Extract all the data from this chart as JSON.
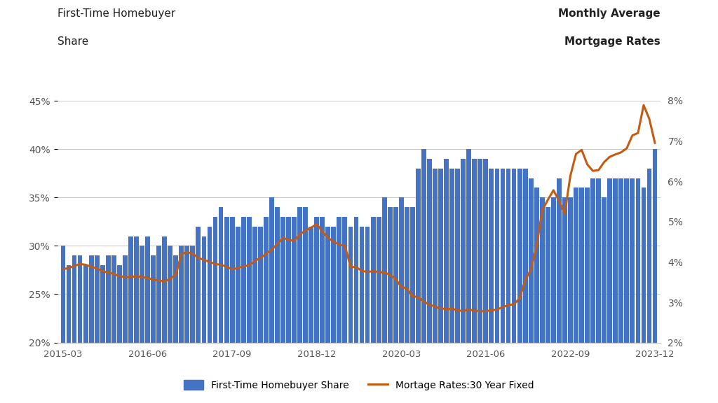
{
  "title_left_line1": "First-Time Homebuyer",
  "title_left_line2": "Share",
  "title_right_line1": "Monthly Average",
  "title_right_line2": "Mortgage Rates",
  "legend_bar": "First-Time Homebuyer Share",
  "legend_line": "Mortage Rates:30 Year Fixed",
  "bar_color": "#4472C4",
  "line_color": "#C55A11",
  "bg_color": "#FFFFFF",
  "ylim_left": [
    0.2,
    0.45
  ],
  "ylim_right": [
    0.02,
    0.08
  ],
  "yticks_left": [
    0.2,
    0.25,
    0.3,
    0.35,
    0.4,
    0.45
  ],
  "yticks_right": [
    0.02,
    0.03,
    0.04,
    0.05,
    0.06,
    0.07,
    0.08
  ],
  "fthb_share": [
    0.3,
    0.28,
    0.29,
    0.29,
    0.28,
    0.29,
    0.29,
    0.28,
    0.29,
    0.29,
    0.28,
    0.29,
    0.31,
    0.31,
    0.3,
    0.31,
    0.29,
    0.3,
    0.31,
    0.3,
    0.29,
    0.3,
    0.3,
    0.3,
    0.32,
    0.31,
    0.32,
    0.33,
    0.34,
    0.33,
    0.33,
    0.32,
    0.33,
    0.33,
    0.32,
    0.32,
    0.33,
    0.35,
    0.34,
    0.33,
    0.33,
    0.33,
    0.34,
    0.34,
    0.32,
    0.33,
    0.33,
    0.32,
    0.32,
    0.33,
    0.33,
    0.32,
    0.33,
    0.32,
    0.32,
    0.33,
    0.33,
    0.35,
    0.34,
    0.34,
    0.35,
    0.34,
    0.34,
    0.38,
    0.4,
    0.39,
    0.38,
    0.38,
    0.39,
    0.38,
    0.38,
    0.39,
    0.4,
    0.39,
    0.39,
    0.39,
    0.38,
    0.38,
    0.38,
    0.38,
    0.38,
    0.38,
    0.38,
    0.37,
    0.36,
    0.35,
    0.34,
    0.35,
    0.37,
    0.35,
    0.35,
    0.36,
    0.36,
    0.36,
    0.37,
    0.37,
    0.35,
    0.37,
    0.37,
    0.37,
    0.37,
    0.37,
    0.37,
    0.36,
    0.38,
    0.4
  ],
  "mortgage_rates": [
    0.0382,
    0.0385,
    0.039,
    0.0395,
    0.0393,
    0.0388,
    0.0384,
    0.0377,
    0.0374,
    0.037,
    0.0365,
    0.0362,
    0.0363,
    0.0364,
    0.0363,
    0.036,
    0.0356,
    0.0354,
    0.0352,
    0.0358,
    0.0368,
    0.042,
    0.0425,
    0.042,
    0.041,
    0.0405,
    0.04,
    0.0395,
    0.0393,
    0.0388,
    0.0382,
    0.0385,
    0.0389,
    0.0392,
    0.0402,
    0.041,
    0.042,
    0.043,
    0.0445,
    0.046,
    0.0455,
    0.0452,
    0.0468,
    0.0478,
    0.0485,
    0.0494,
    0.0475,
    0.046,
    0.045,
    0.0443,
    0.044,
    0.0388,
    0.0387,
    0.0378,
    0.0375,
    0.0377,
    0.0375,
    0.0374,
    0.0368,
    0.0358,
    0.0338,
    0.0334,
    0.0316,
    0.0312,
    0.0302,
    0.0294,
    0.0289,
    0.0285,
    0.0283,
    0.0284,
    0.028,
    0.0278,
    0.0282,
    0.0279,
    0.0278,
    0.0278,
    0.028,
    0.0282,
    0.0288,
    0.0293,
    0.0295,
    0.031,
    0.0355,
    0.0382,
    0.0438,
    0.0528,
    0.0554,
    0.0578,
    0.0551,
    0.052,
    0.0614,
    0.0668,
    0.0678,
    0.0642,
    0.0626,
    0.0628,
    0.0648,
    0.0661,
    0.0667,
    0.0672,
    0.0682,
    0.0714,
    0.072,
    0.0789,
    0.0755,
    0.0695
  ],
  "xtick_positions": [
    0,
    15,
    30,
    45,
    60,
    75,
    90,
    105
  ],
  "xtick_labels": [
    "2015-03",
    "2016-06",
    "2017-09",
    "2018-12",
    "2020-03",
    "2021-06",
    "2022-09",
    "2023-12"
  ]
}
